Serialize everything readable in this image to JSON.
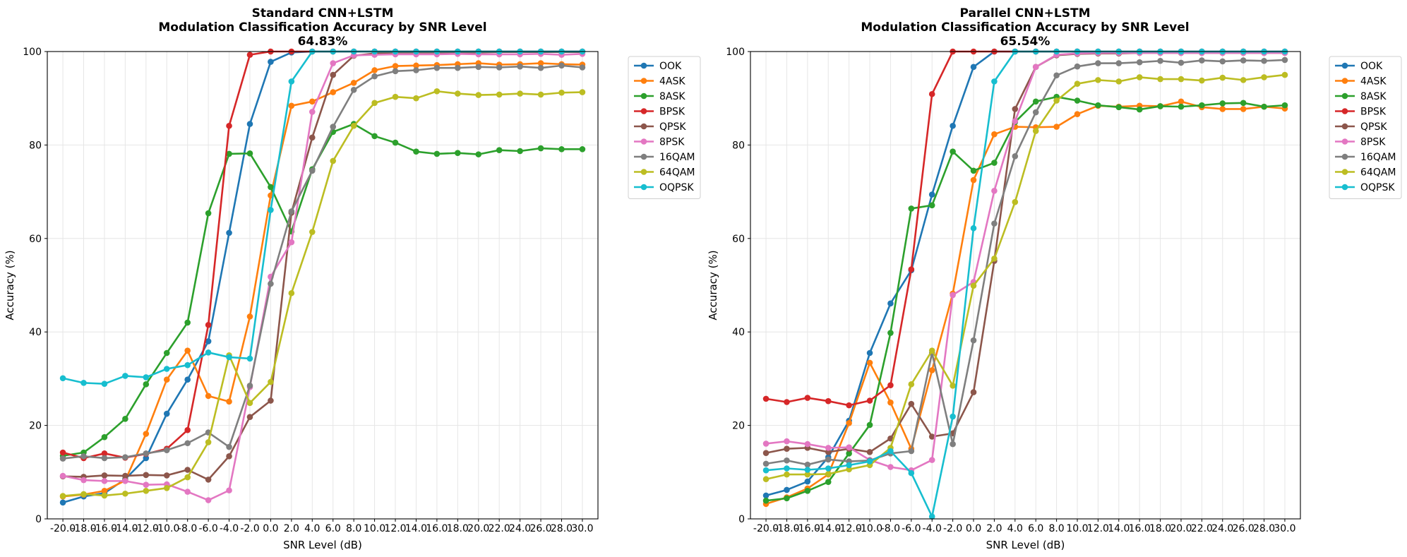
{
  "chart_data": [
    {
      "type": "line",
      "title": [
        "Standard CNN+LSTM",
        "Modulation Classification Accuracy by SNR Level",
        "64.83%"
      ],
      "xlabel": "SNR Level (dB)",
      "ylabel": "Accuracy (%)",
      "ylim": [
        0,
        100
      ],
      "yticks": [
        "0",
        "20",
        "40",
        "60",
        "80",
        "100"
      ],
      "grid": true,
      "legend_position": "outside-top-right",
      "x": [
        "-20.0",
        "-18.0",
        "-16.0",
        "-14.0",
        "-12.0",
        "-10.0",
        "-8.0",
        "-6.0",
        "-4.0",
        "-2.0",
        "0.0",
        "2.0",
        "4.0",
        "6.0",
        "8.0",
        "10.0",
        "12.0",
        "14.0",
        "16.0",
        "18.0",
        "20.0",
        "22.0",
        "24.0",
        "26.0",
        "28.0",
        "30.0"
      ],
      "series": [
        {
          "name": "OOK",
          "color": "#1f77b4",
          "values": [
            3.5,
            4.8,
            5.5,
            8.5,
            13.0,
            22.5,
            29.8,
            38.0,
            61.2,
            84.5,
            97.8,
            99.8,
            100,
            100,
            100,
            100,
            100,
            100,
            100,
            100,
            100,
            100,
            100,
            100,
            100,
            100
          ]
        },
        {
          "name": "4ASK",
          "color": "#ff7f0e",
          "values": [
            4.8,
            5.2,
            6.0,
            8.2,
            18.2,
            29.8,
            36.0,
            26.3,
            25.1,
            43.3,
            69.2,
            88.4,
            89.3,
            91.3,
            93.3,
            96.0,
            96.9,
            97.0,
            97.1,
            97.3,
            97.5,
            97.2,
            97.3,
            97.5,
            97.3,
            97.2
          ]
        },
        {
          "name": "8ASK",
          "color": "#2ca02c",
          "values": [
            13.5,
            14.2,
            17.5,
            21.4,
            28.8,
            35.5,
            42.0,
            65.4,
            78.1,
            78.2,
            71.0,
            61.5,
            74.8,
            82.8,
            84.5,
            81.9,
            80.5,
            78.6,
            78.1,
            78.3,
            78.0,
            78.9,
            78.7,
            79.3,
            79.1,
            79.1
          ]
        },
        {
          "name": "BPSK",
          "color": "#d62728",
          "values": [
            14.2,
            13.0,
            14.0,
            13.1,
            13.9,
            15.0,
            19.0,
            41.5,
            84.1,
            99.3,
            100,
            100,
            100,
            100,
            100,
            100,
            100,
            100,
            100,
            100,
            100,
            100,
            100,
            100,
            100,
            100
          ]
        },
        {
          "name": "QPSK",
          "color": "#8c564b",
          "values": [
            9.1,
            9.0,
            9.3,
            9.2,
            9.4,
            9.3,
            10.5,
            8.4,
            13.4,
            21.8,
            25.3,
            65.5,
            81.6,
            95.0,
            99.1,
            99.6,
            99.8,
            99.8,
            99.8,
            99.8,
            99.8,
            99.9,
            99.9,
            99.9,
            99.9,
            99.9
          ]
        },
        {
          "name": "8PSK",
          "color": "#e377c2",
          "values": [
            9.2,
            8.3,
            8.1,
            8.1,
            7.3,
            7.4,
            5.8,
            4.0,
            6.1,
            28.2,
            51.8,
            59.2,
            87.1,
            97.5,
            99.2,
            99.3,
            99.4,
            99.4,
            99.4,
            99.5,
            99.4,
            99.4,
            99.4,
            99.5,
            99.3,
            99.5
          ]
        },
        {
          "name": "16QAM",
          "color": "#7f7f7f",
          "values": [
            12.9,
            13.4,
            13.0,
            13.2,
            14.0,
            14.7,
            16.2,
            18.5,
            15.4,
            28.5,
            50.3,
            65.8,
            74.5,
            83.9,
            91.8,
            94.7,
            95.8,
            96.0,
            96.5,
            96.5,
            96.7,
            96.6,
            96.8,
            96.5,
            97.0,
            96.6
          ]
        },
        {
          "name": "64QAM",
          "color": "#bcbd22",
          "values": [
            4.9,
            5.3,
            5.0,
            5.4,
            6.0,
            6.6,
            8.9,
            16.4,
            35.0,
            24.8,
            29.3,
            48.3,
            61.4,
            76.6,
            84.1,
            89.0,
            90.3,
            90.0,
            91.5,
            91.0,
            90.7,
            90.8,
            91.0,
            90.8,
            91.2,
            91.3
          ]
        },
        {
          "name": "OQPSK",
          "color": "#17becf",
          "values": [
            30.1,
            29.1,
            28.9,
            30.6,
            30.3,
            32.1,
            32.9,
            35.6,
            34.6,
            34.3,
            66.1,
            93.6,
            100,
            100,
            100,
            100,
            100,
            100,
            100,
            100,
            100,
            100,
            100,
            100,
            100,
            100
          ]
        }
      ]
    },
    {
      "type": "line",
      "title": [
        "Parallel CNN+LSTM",
        "Modulation Classification Accuracy by SNR Level",
        "65.54%"
      ],
      "xlabel": "SNR Level (dB)",
      "ylabel": "Accuracy (%)",
      "ylim": [
        0,
        100
      ],
      "yticks": [
        "0",
        "20",
        "40",
        "60",
        "80",
        "100"
      ],
      "grid": true,
      "legend_position": "outside-top-right",
      "x": [
        "-20.0",
        "-18.0",
        "-16.0",
        "-14.0",
        "-12.0",
        "-10.0",
        "-8.0",
        "-6.0",
        "-4.0",
        "-2.0",
        "0.0",
        "2.0",
        "4.0",
        "6.0",
        "8.0",
        "10.0",
        "12.0",
        "14.0",
        "16.0",
        "18.0",
        "20.0",
        "22.0",
        "24.0",
        "26.0",
        "28.0",
        "30.0"
      ],
      "series": [
        {
          "name": "OOK",
          "color": "#1f77b4",
          "values": [
            5.0,
            6.2,
            8.0,
            13.2,
            21.0,
            35.5,
            46.1,
            53.2,
            69.4,
            84.1,
            96.7,
            100,
            100,
            100,
            100,
            100,
            100,
            100,
            100,
            100,
            100,
            100,
            100,
            100,
            100,
            100
          ]
        },
        {
          "name": "4ASK",
          "color": "#ff7f0e",
          "values": [
            3.2,
            4.6,
            6.5,
            9.5,
            20.5,
            33.4,
            24.9,
            15.0,
            31.8,
            48.2,
            72.5,
            82.3,
            83.9,
            83.8,
            83.9,
            86.6,
            88.4,
            88.2,
            88.4,
            88.3,
            89.3,
            88.1,
            87.7,
            87.7,
            88.2,
            87.8
          ]
        },
        {
          "name": "8ASK",
          "color": "#2ca02c",
          "values": [
            3.9,
            4.4,
            6.0,
            7.9,
            14.0,
            20.1,
            39.8,
            66.4,
            67.1,
            78.6,
            74.5,
            76.2,
            84.9,
            89.3,
            90.3,
            89.5,
            88.5,
            88.1,
            87.6,
            88.3,
            88.2,
            88.5,
            88.9,
            89.0,
            88.2,
            88.5
          ]
        },
        {
          "name": "BPSK",
          "color": "#d62728",
          "values": [
            25.7,
            25.0,
            25.9,
            25.2,
            24.3,
            25.3,
            28.6,
            53.4,
            90.9,
            100,
            100,
            100,
            100,
            100,
            100,
            100,
            100,
            100,
            100,
            100,
            100,
            100,
            100,
            100,
            100,
            100
          ]
        },
        {
          "name": "QPSK",
          "color": "#8c564b",
          "values": [
            14.1,
            15.0,
            15.2,
            14.3,
            15.0,
            14.3,
            17.2,
            24.6,
            17.6,
            18.3,
            27.1,
            55.2,
            87.7,
            96.7,
            99.2,
            99.5,
            99.6,
            99.6,
            99.7,
            99.7,
            99.7,
            99.7,
            99.7,
            99.7,
            99.7,
            99.7
          ]
        },
        {
          "name": "8PSK",
          "color": "#e377c2",
          "values": [
            16.1,
            16.6,
            16.0,
            15.2,
            15.3,
            12.6,
            11.1,
            10.4,
            12.6,
            47.9,
            50.7,
            70.2,
            85.1,
            96.7,
            99.3,
            99.6,
            99.7,
            99.7,
            99.7,
            99.7,
            99.7,
            99.7,
            99.7,
            99.7,
            99.7,
            99.7
          ]
        },
        {
          "name": "16QAM",
          "color": "#7f7f7f",
          "values": [
            11.8,
            12.5,
            11.6,
            12.7,
            12.3,
            12.5,
            14.0,
            14.5,
            35.5,
            16.0,
            38.2,
            63.2,
            77.6,
            87.0,
            94.9,
            96.8,
            97.5,
            97.5,
            97.7,
            98.0,
            97.6,
            98.1,
            97.9,
            98.1,
            98.0,
            98.2
          ]
        },
        {
          "name": "64QAM",
          "color": "#bcbd22",
          "values": [
            8.5,
            9.5,
            9.5,
            9.6,
            10.6,
            11.5,
            15.2,
            28.8,
            36.0,
            28.5,
            49.9,
            55.7,
            67.8,
            83.0,
            89.5,
            93.1,
            93.9,
            93.6,
            94.5,
            94.1,
            94.1,
            93.8,
            94.4,
            93.9,
            94.5,
            95.0
          ]
        },
        {
          "name": "OQPSK",
          "color": "#17becf",
          "values": [
            10.4,
            10.8,
            10.5,
            10.8,
            11.5,
            12.3,
            14.5,
            9.8,
            0.5,
            21.9,
            62.2,
            93.6,
            100,
            100,
            100,
            100,
            100,
            100,
            100,
            100,
            100,
            100,
            100,
            100,
            100,
            100
          ]
        }
      ]
    }
  ]
}
